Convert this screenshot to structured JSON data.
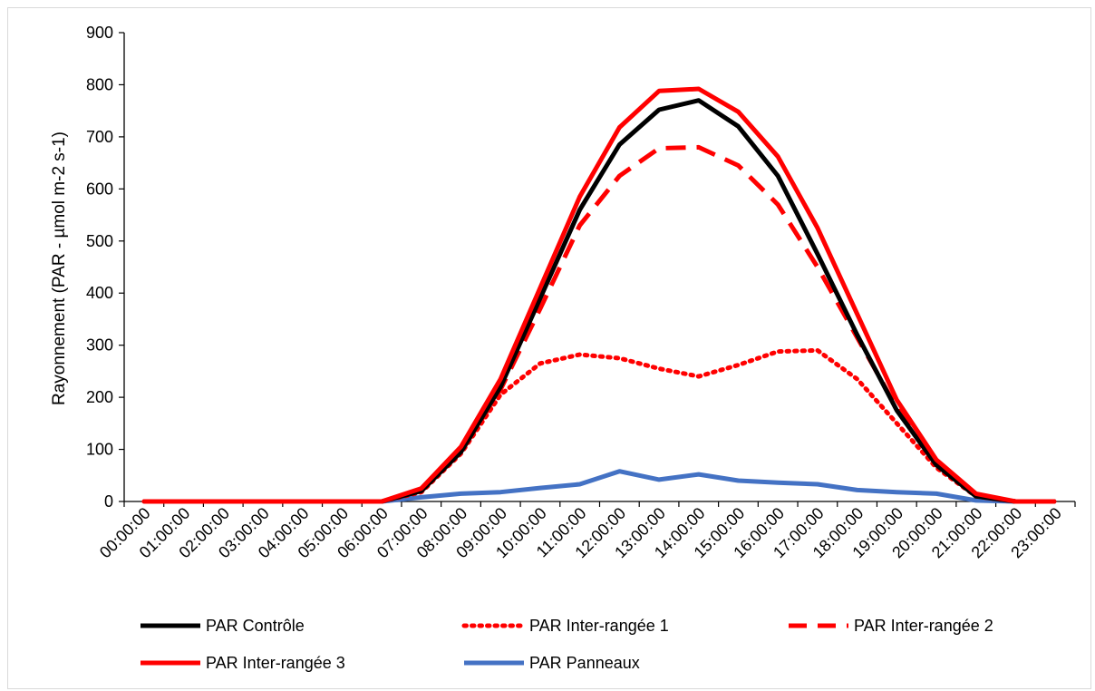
{
  "chart_data": {
    "type": "line",
    "title": "",
    "xlabel": "",
    "ylabel": "Rayonnement (PAR - µmol m-2 s-1)",
    "ylim": [
      0,
      900
    ],
    "yticks": [
      0,
      100,
      200,
      300,
      400,
      500,
      600,
      700,
      800,
      900
    ],
    "categories": [
      "00:00:00",
      "01:00:00",
      "02:00:00",
      "03:00:00",
      "04:00:00",
      "05:00:00",
      "06:00:00",
      "07:00:00",
      "08:00:00",
      "09:00:00",
      "10:00:00",
      "11:00:00",
      "12:00:00",
      "13:00:00",
      "14:00:00",
      "15:00:00",
      "16:00:00",
      "17:00:00",
      "18:00:00",
      "19:00:00",
      "20:00:00",
      "21:00:00",
      "22:00:00",
      "23:00:00"
    ],
    "grid": false,
    "legend_position": "bottom",
    "series": [
      {
        "name": "PAR Contrôle",
        "color": "#000000",
        "dash": "solid",
        "values": [
          0,
          0,
          0,
          0,
          0,
          0,
          0,
          20,
          95,
          220,
          390,
          560,
          685,
          752,
          770,
          720,
          625,
          475,
          320,
          175,
          70,
          10,
          0,
          0
        ]
      },
      {
        "name": "PAR Inter-rangée 1",
        "color": "#ff0000",
        "dash": "dotted",
        "values": [
          0,
          0,
          0,
          0,
          0,
          0,
          0,
          18,
          92,
          205,
          265,
          282,
          275,
          255,
          240,
          262,
          288,
          290,
          235,
          150,
          65,
          10,
          0,
          0
        ]
      },
      {
        "name": "PAR Inter-rangée 2",
        "color": "#ff0000",
        "dash": "dashed",
        "values": [
          0,
          0,
          0,
          0,
          0,
          0,
          0,
          20,
          95,
          215,
          370,
          530,
          625,
          678,
          680,
          645,
          570,
          450,
          315,
          180,
          72,
          10,
          0,
          0
        ]
      },
      {
        "name": "PAR Inter-rangée 3",
        "color": "#ff0000",
        "dash": "solid",
        "values": [
          0,
          0,
          0,
          0,
          0,
          0,
          0,
          25,
          105,
          235,
          410,
          585,
          718,
          788,
          792,
          748,
          662,
          525,
          360,
          195,
          80,
          15,
          0,
          0
        ]
      },
      {
        "name": "PAR Panneaux",
        "color": "#4472c4",
        "dash": "solid",
        "values": [
          0,
          0,
          0,
          0,
          0,
          0,
          0,
          8,
          15,
          18,
          26,
          33,
          58,
          42,
          52,
          40,
          36,
          33,
          22,
          18,
          15,
          2,
          0,
          0
        ]
      }
    ]
  }
}
